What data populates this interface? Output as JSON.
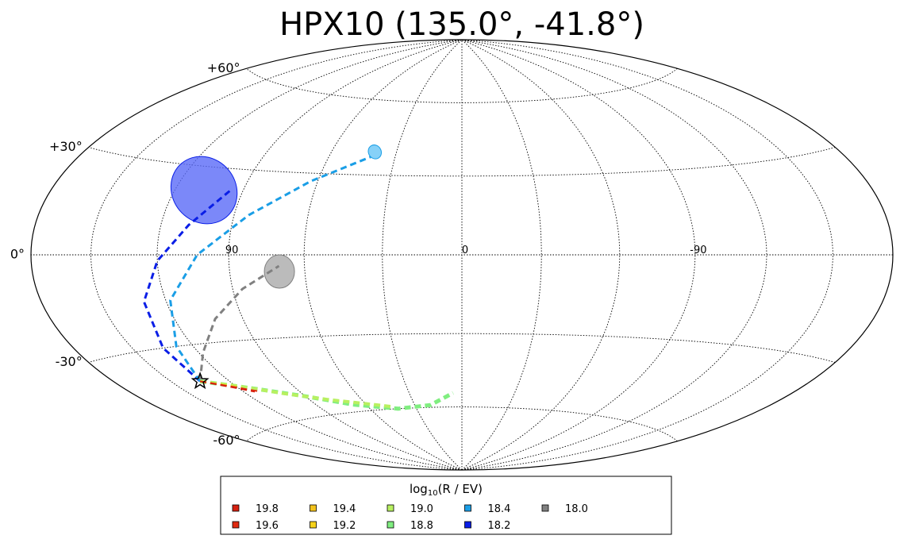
{
  "chart_data": {
    "type": "scatter",
    "projection": "aitoff-hammer",
    "title": "HPX10 (135.0°, -41.8°)",
    "grid": true,
    "lat_ticks": [
      {
        "lat": 60,
        "label": "+60°"
      },
      {
        "lat": 30,
        "label": "+30°"
      },
      {
        "lat": 0,
        "label": "0°"
      },
      {
        "lat": -30,
        "label": "-30°"
      },
      {
        "lat": -60,
        "label": "-60°"
      }
    ],
    "lon_ticks": [
      {
        "lon": 90,
        "label": "90"
      },
      {
        "lon": 0,
        "label": "0"
      },
      {
        "lon": -90,
        "label": "-90"
      }
    ],
    "source": {
      "lon": 135.0,
      "lat": -41.8,
      "marker": "star"
    },
    "legend": {
      "title_prefix": "log",
      "title_sub": "10",
      "title_var": "(R",
      "title_suffix": " / EV)",
      "position": "bottom",
      "entries": [
        {
          "label": "19.8",
          "color": "#d62010"
        },
        {
          "label": "19.6",
          "color": "#e02a10"
        },
        {
          "label": "19.4",
          "color": "#f2c21c"
        },
        {
          "label": "19.2",
          "color": "#f6d21a"
        },
        {
          "label": "19.0",
          "color": "#b8f060"
        },
        {
          "label": "18.8",
          "color": "#80ee80"
        },
        {
          "label": "18.4",
          "color": "#1a9ee6"
        },
        {
          "label": "18.2",
          "color": "#0a1ee6"
        },
        {
          "label": "18.0",
          "color": "#808080"
        }
      ]
    },
    "series": [
      {
        "name": "18.0",
        "color": "#808080",
        "ellipse": {
          "lon": 70,
          "lat": -6,
          "fill": "#aaaaaa"
        },
        "path": [
          [
            135,
            -41.8
          ],
          [
            118,
            -33
          ],
          [
            102,
            -22
          ],
          [
            86,
            -12
          ],
          [
            70,
            -4
          ]
        ]
      },
      {
        "name": "18.2",
        "color": "#0a1ee6",
        "ellipse": {
          "lon": 107,
          "lat": 22,
          "fill": "#5a6af8"
        },
        "path": [
          [
            135,
            -41.8
          ],
          [
            135,
            -30
          ],
          [
            130,
            -15
          ],
          [
            120,
            -2
          ],
          [
            108,
            10
          ],
          [
            95,
            23
          ]
        ]
      },
      {
        "name": "18.4",
        "color": "#1a9ee6",
        "ellipse": {
          "lon": 40,
          "lat": 39,
          "fill": "#68c6f6"
        },
        "path": [
          [
            135,
            -41.8
          ],
          [
            128,
            -30
          ],
          [
            118,
            -15
          ],
          [
            103,
            0
          ],
          [
            84,
            14
          ],
          [
            63,
            27
          ],
          [
            41,
            37
          ]
        ]
      },
      {
        "name": "18.8",
        "color": "#80ee80",
        "path": [
          [
            135,
            -41.8
          ],
          [
            112,
            -47
          ],
          [
            90,
            -52
          ],
          [
            68,
            -57
          ],
          [
            42,
            -60
          ],
          [
            20,
            -59
          ],
          [
            5,
            -54
          ]
        ]
      },
      {
        "name": "19.0",
        "color": "#b8f060",
        "path": [
          [
            135,
            -41.8
          ],
          [
            120,
            -45
          ],
          [
            100,
            -50
          ],
          [
            80,
            -54
          ],
          [
            60,
            -57
          ],
          [
            45,
            -59
          ]
        ]
      },
      {
        "name": "19.2",
        "color": "#f6d21a",
        "path": [
          [
            135,
            -41.8
          ],
          [
            126,
            -44
          ],
          [
            118,
            -46
          ]
        ]
      },
      {
        "name": "19.4",
        "color": "#f2c21c",
        "path": [
          [
            135,
            -41.8
          ],
          [
            127,
            -44
          ],
          [
            119,
            -46
          ]
        ]
      },
      {
        "name": "19.6",
        "color": "#e02a10",
        "path": [
          [
            135,
            -41.8
          ],
          [
            123,
            -45
          ],
          [
            112,
            -48
          ]
        ]
      },
      {
        "name": "19.8",
        "color": "#d62010",
        "path": [
          [
            135,
            -41.8
          ],
          [
            124,
            -45
          ],
          [
            114,
            -48
          ]
        ]
      }
    ]
  }
}
